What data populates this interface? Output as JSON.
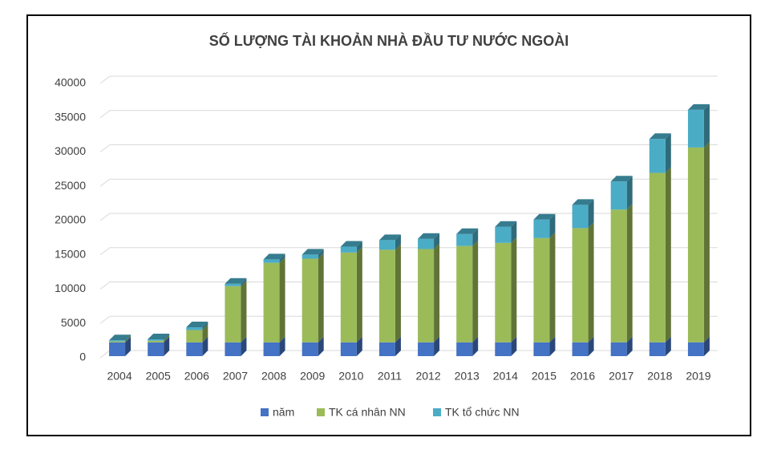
{
  "chart_data": {
    "type": "bar3d_stacked",
    "title": "SỐ LƯỢNG TÀI KHOẢN NHÀ ĐẦU TƯ NƯỚC NGOÀI",
    "categories": [
      "2004",
      "2005",
      "2006",
      "2007",
      "2008",
      "2009",
      "2010",
      "2011",
      "2012",
      "2013",
      "2014",
      "2015",
      "2016",
      "2017",
      "2018",
      "2019"
    ],
    "series": [
      {
        "name": "năm",
        "color": "#4472c4",
        "values": [
          2004,
          2005,
          2006,
          2007,
          2008,
          2009,
          2010,
          2011,
          2012,
          2013,
          2014,
          2015,
          2016,
          2017,
          2018,
          2019
        ]
      },
      {
        "name": "TK cá nhân NN",
        "color": "#9bbb59",
        "values": [
          150,
          250,
          1800,
          8200,
          11600,
          12200,
          13100,
          13500,
          13600,
          14050,
          14500,
          15200,
          16650,
          19350,
          24700,
          28400
        ]
      },
      {
        "name": "TK tổ chức NN",
        "color": "#4bacc6",
        "values": [
          150,
          200,
          400,
          350,
          500,
          600,
          850,
          1400,
          1500,
          1750,
          2350,
          2700,
          3400,
          4100,
          4950,
          5500
        ]
      }
    ],
    "ylim": [
      0,
      40000
    ],
    "yticks": [
      0,
      5000,
      10000,
      15000,
      20000,
      25000,
      30000,
      35000,
      40000
    ],
    "grid": true,
    "legend": "bottom"
  }
}
